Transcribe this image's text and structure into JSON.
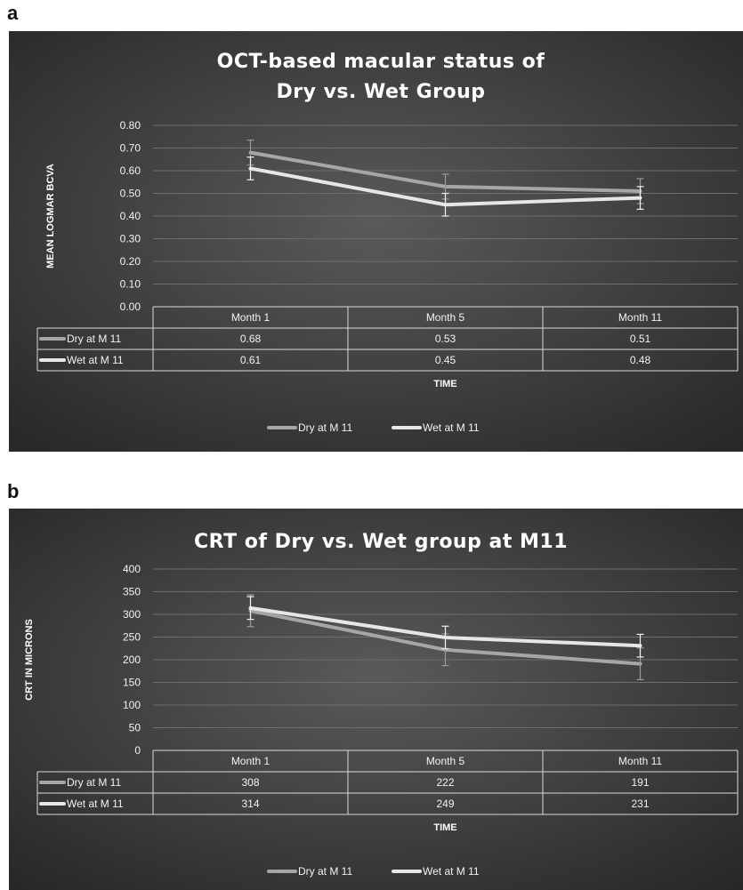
{
  "panels": [
    {
      "letter": "a",
      "chart_data": {
        "type": "line",
        "title_lines": [
          "OCT-based macular status of",
          "Dry vs. Wet Group"
        ],
        "xlabel": "TIME",
        "ylabel": "MEAN LOGMAR BCVA",
        "categories": [
          "Month 1",
          "Month 5",
          "Month 11"
        ],
        "ylim": [
          0,
          0.8
        ],
        "yticks": [
          "0.00",
          "0.10",
          "0.20",
          "0.30",
          "0.40",
          "0.50",
          "0.60",
          "0.70",
          "0.80"
        ],
        "grid": true,
        "legend_position": "bottom",
        "data_table": true,
        "series": [
          {
            "name": "Dry at M 11",
            "color": "#a6a6a6",
            "values": [
              0.68,
              0.53,
              0.51
            ],
            "labels": [
              "0.68",
              "0.53",
              "0.51"
            ],
            "error": [
              0.055,
              0.055,
              0.055
            ]
          },
          {
            "name": "Wet at M 11",
            "color": "#e6e6e6",
            "values": [
              0.61,
              0.45,
              0.48
            ],
            "labels": [
              "0.61",
              "0.45",
              "0.48"
            ],
            "error": [
              0.05,
              0.05,
              0.05
            ]
          }
        ]
      }
    },
    {
      "letter": "b",
      "chart_data": {
        "type": "line",
        "title_lines": [
          "CRT of Dry vs. Wet group at M11"
        ],
        "xlabel": "TIME",
        "ylabel": "CRT IN MICRONS",
        "categories": [
          "Month 1",
          "Month 5",
          "Month 11"
        ],
        "ylim": [
          0,
          400
        ],
        "yticks": [
          "0",
          "50",
          "100",
          "150",
          "200",
          "250",
          "300",
          "350",
          "400"
        ],
        "grid": true,
        "legend_position": "bottom",
        "data_table": true,
        "series": [
          {
            "name": "Dry at M 11",
            "color": "#a6a6a6",
            "values": [
              308,
              222,
              191
            ],
            "labels": [
              "308",
              "222",
              "191"
            ],
            "error": [
              35,
              35,
              35
            ]
          },
          {
            "name": "Wet at M 11",
            "color": "#e6e6e6",
            "values": [
              314,
              249,
              231
            ],
            "labels": [
              "314",
              "249",
              "231"
            ],
            "error": [
              25,
              25,
              25
            ]
          }
        ]
      }
    }
  ]
}
